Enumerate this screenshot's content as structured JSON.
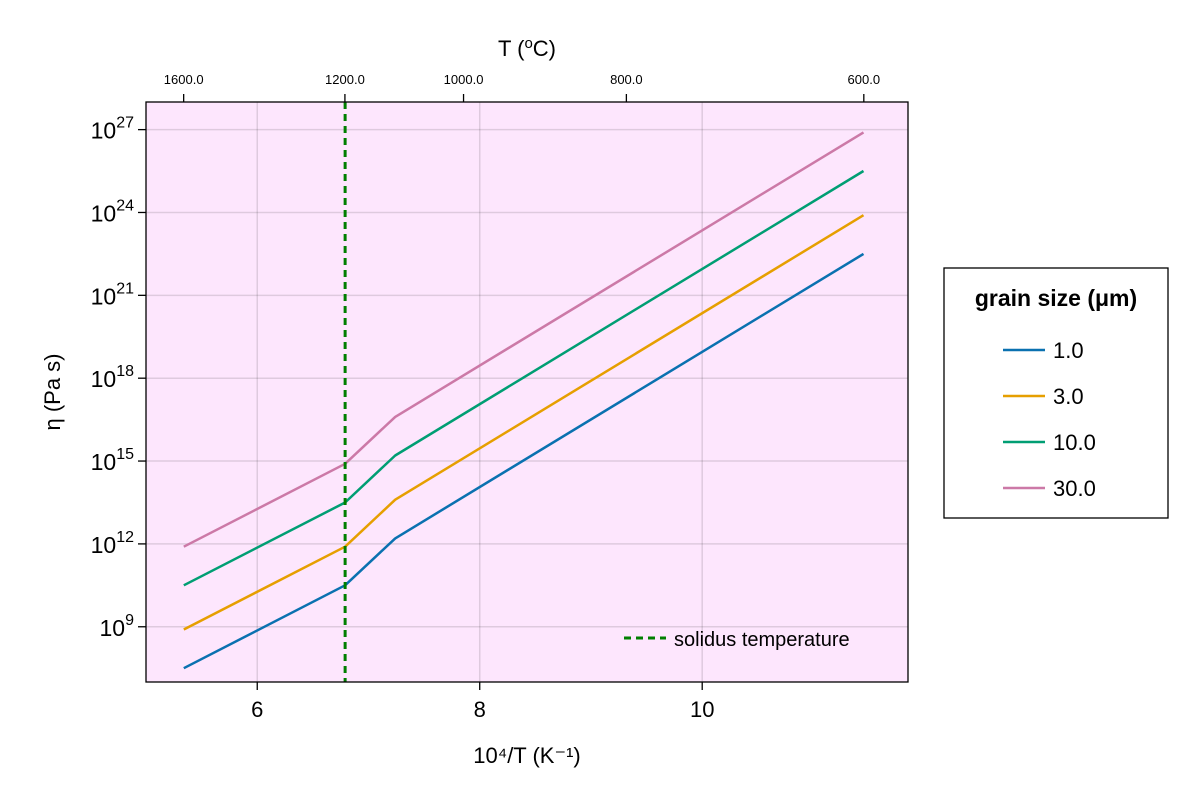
{
  "chart_data": {
    "type": "line",
    "xlabel": "10⁴/T (K⁻¹)",
    "ylabel": "η (Pa s)",
    "top_axis_label_base": "T (",
    "top_axis_label_sup": "o",
    "top_axis_label_unit": "C)",
    "xlim": [
      5.0,
      11.85
    ],
    "ylim_log10": [
      7.0,
      28.0
    ],
    "x_ticks": [
      6,
      8,
      10
    ],
    "x_tick_labels": [
      "6",
      "8",
      "10"
    ],
    "y_ticks_log10": [
      9,
      12,
      15,
      18,
      21,
      24,
      27
    ],
    "y_tick_labels": [
      {
        "base": "10",
        "exp": "9"
      },
      {
        "base": "10",
        "exp": "12"
      },
      {
        "base": "10",
        "exp": "15"
      },
      {
        "base": "10",
        "exp": "18"
      },
      {
        "base": "10",
        "exp": "21"
      },
      {
        "base": "10",
        "exp": "24"
      },
      {
        "base": "10",
        "exp": "27"
      }
    ],
    "top_ticks_celsius": [
      1600.0,
      1200.0,
      1000.0,
      800.0,
      600.0
    ],
    "top_tick_labels": [
      "1600.0",
      "1200.0",
      "1000.0",
      "800.0",
      "600.0"
    ],
    "grid": true,
    "background": "#fde6fd",
    "series": [
      {
        "name": "1.0",
        "color": "#0a71b0",
        "x": [
          5.34,
          6.79,
          7.24,
          11.45
        ],
        "log10_y": [
          7.5,
          10.5,
          12.2,
          22.5
        ]
      },
      {
        "name": "3.0",
        "color": "#e69f00",
        "x": [
          5.34,
          6.79,
          7.24,
          11.45
        ],
        "log10_y": [
          8.9,
          11.9,
          13.6,
          23.9
        ]
      },
      {
        "name": "10.0",
        "color": "#009e73",
        "x": [
          5.34,
          6.79,
          7.24,
          11.45
        ],
        "log10_y": [
          10.5,
          13.5,
          15.2,
          25.5
        ]
      },
      {
        "name": "30.0",
        "color": "#cc79a7",
        "x": [
          5.34,
          6.79,
          7.24,
          11.45
        ],
        "log10_y": [
          11.9,
          14.9,
          16.6,
          26.9
        ]
      }
    ],
    "solidus": {
      "x": 6.79,
      "label": "solidus temperature",
      "color": "#007f00"
    },
    "legend": {
      "title": "grain size (μm)",
      "placement": "right"
    }
  }
}
